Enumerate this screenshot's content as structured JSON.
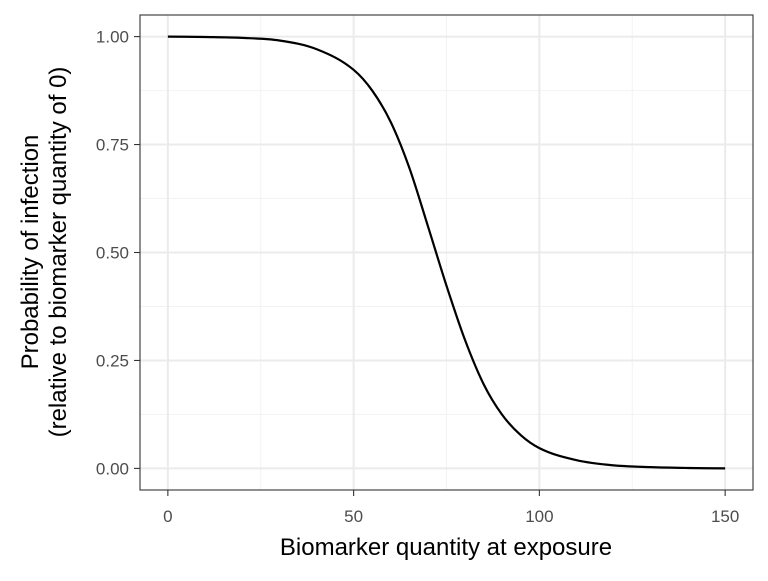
{
  "chart_data": {
    "type": "line",
    "title": "",
    "xlabel": "Biomarker quantity at exposure",
    "ylabel": [
      "Probability of infection",
      "(relative to biomarker quantity of 0)"
    ],
    "xlim": [
      -7.5,
      157.5
    ],
    "ylim": [
      -0.05,
      1.05
    ],
    "x_ticks": [
      0,
      50,
      100,
      150
    ],
    "x_tick_labels": [
      "0",
      "50",
      "100",
      "150"
    ],
    "y_ticks": [
      0,
      0.25,
      0.5,
      0.75,
      1
    ],
    "y_tick_labels": [
      "0.00",
      "0.25",
      "0.50",
      "0.75",
      "1.00"
    ],
    "grid": true,
    "legend": "none",
    "series": [
      {
        "color": "#000000",
        "x": [
          0,
          10,
          20,
          30,
          40,
          50,
          55,
          60,
          65,
          70,
          75,
          80,
          85,
          90,
          95,
          100,
          110,
          120,
          130,
          140,
          150
        ],
        "y": [
          1.0,
          0.999,
          0.997,
          0.991,
          0.971,
          0.923,
          0.875,
          0.802,
          0.696,
          0.561,
          0.423,
          0.297,
          0.195,
          0.124,
          0.077,
          0.047,
          0.019,
          0.007,
          0.003,
          0.001,
          0.0
        ]
      }
    ]
  }
}
